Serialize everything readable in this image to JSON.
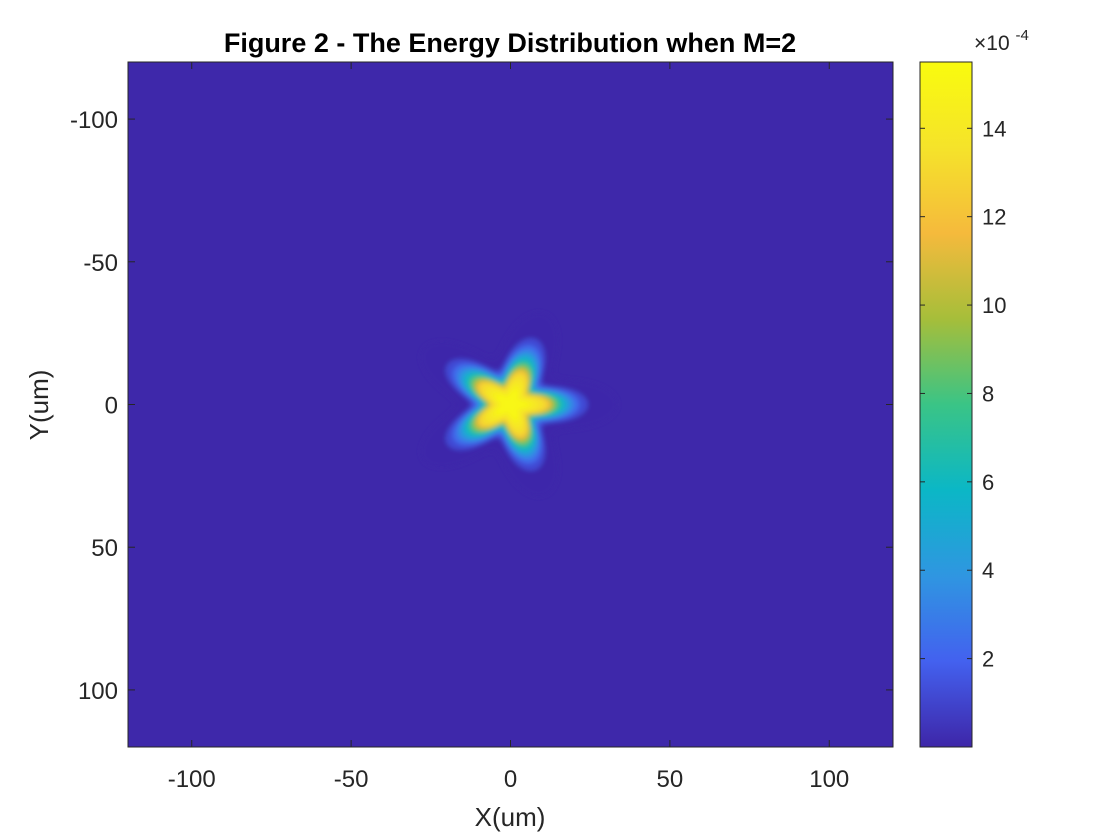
{
  "chart_data": {
    "type": "heatmap",
    "title": "Figure 2 - The Energy Distribution when M=2",
    "xlabel": "X(um)",
    "ylabel": "Y(um)",
    "xlim": [
      -120,
      120
    ],
    "ylim": [
      -120,
      120
    ],
    "y_axis_reversed": true,
    "x_ticks": [
      -100,
      -50,
      0,
      50,
      100
    ],
    "y_ticks": [
      -100,
      -50,
      0,
      50,
      100
    ],
    "x_tick_labels": [
      "-100",
      "-50",
      "0",
      "50",
      "100"
    ],
    "y_tick_labels": [
      "-100",
      "-50",
      "0",
      "50",
      "100"
    ],
    "grid": false,
    "colormap": "parula",
    "colorbar": {
      "min": 0.0,
      "max": 15.5,
      "ticks": [
        2,
        4,
        6,
        8,
        10,
        12,
        14
      ],
      "tick_labels": [
        "2",
        "4",
        "6",
        "8",
        "10",
        "12",
        "14"
      ],
      "exponent_label": "×10",
      "exponent_power": "-4"
    },
    "field": {
      "shape": "five-pointed star (rounded arms)",
      "center": [
        0,
        0
      ],
      "peak_value": 15.2,
      "background_value": 0.05,
      "inner_radius": 15,
      "outer_radius": 29,
      "arm_count": 5,
      "first_arm_angle_deg": 0
    }
  },
  "colors": {
    "background": "#ffffff",
    "axis": "#262626",
    "colormap_stops": [
      "#3E26A8",
      "#4361EF",
      "#2F96E1",
      "#0BB7C6",
      "#3AC486",
      "#A6BE3A",
      "#F5BA3C",
      "#F5E32A",
      "#F9FB0E"
    ]
  }
}
